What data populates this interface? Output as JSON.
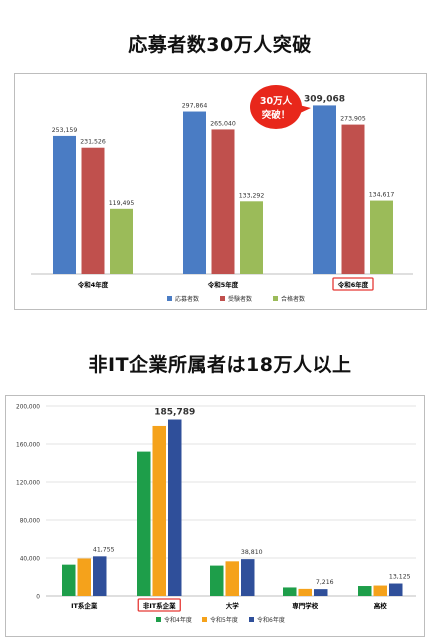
{
  "headline1": "応募者数30万人突破",
  "headline2": "非IT企業所属者は18万人以上",
  "chart_data": [
    {
      "type": "bar",
      "categories": [
        "令和4年度",
        "令和5年度",
        "令和6年度"
      ],
      "highlight_category": "令和6年度",
      "series": [
        {
          "name": "応募者数",
          "color": "#4a7cc4",
          "values": [
            253159,
            297864,
            309068
          ]
        },
        {
          "name": "受験者数",
          "color": "#c0504d",
          "values": [
            231526,
            265040,
            273905
          ]
        },
        {
          "name": "合格者数",
          "color": "#9bbb59",
          "values": [
            119495,
            133292,
            134617
          ]
        }
      ],
      "data_labels": [
        [
          "253,159",
          "231,526",
          "119,495"
        ],
        [
          "297,864",
          "265,040",
          "133,292"
        ],
        [
          "309,068",
          "273,905",
          "134,617"
        ]
      ],
      "callout": {
        "line1": "30万人",
        "line2": "突破！"
      },
      "ylim": [
        0,
        330000
      ],
      "legend_position": "bottom"
    },
    {
      "type": "bar",
      "categories": [
        "IT系企業",
        "非IT系企業",
        "大学",
        "専門学校",
        "高校"
      ],
      "highlight_category": "非IT系企業",
      "series": [
        {
          "name": "令和4年度",
          "color": "#1e9e4a",
          "values": [
            33000,
            152000,
            32000,
            9000,
            10500
          ]
        },
        {
          "name": "令和5年度",
          "color": "#f5a21b",
          "values": [
            39500,
            179000,
            36500,
            7500,
            11000
          ]
        },
        {
          "name": "令和6年度",
          "color": "#2f4f9a",
          "values": [
            41755,
            185789,
            38810,
            7216,
            13125
          ]
        }
      ],
      "point_labels": [
        {
          "category": "IT系企業",
          "text": "41,755"
        },
        {
          "category": "非IT系企業",
          "text": "185,789"
        },
        {
          "category": "大学",
          "text": "38,810"
        },
        {
          "category": "専門学校",
          "text": "7,216"
        },
        {
          "category": "高校",
          "text": "13,125"
        }
      ],
      "y_ticks": [
        "0",
        "40,000",
        "80,000",
        "120,000",
        "160,000",
        "200,000"
      ],
      "ylim": [
        0,
        200000
      ],
      "grid": true,
      "legend_position": "bottom"
    }
  ]
}
